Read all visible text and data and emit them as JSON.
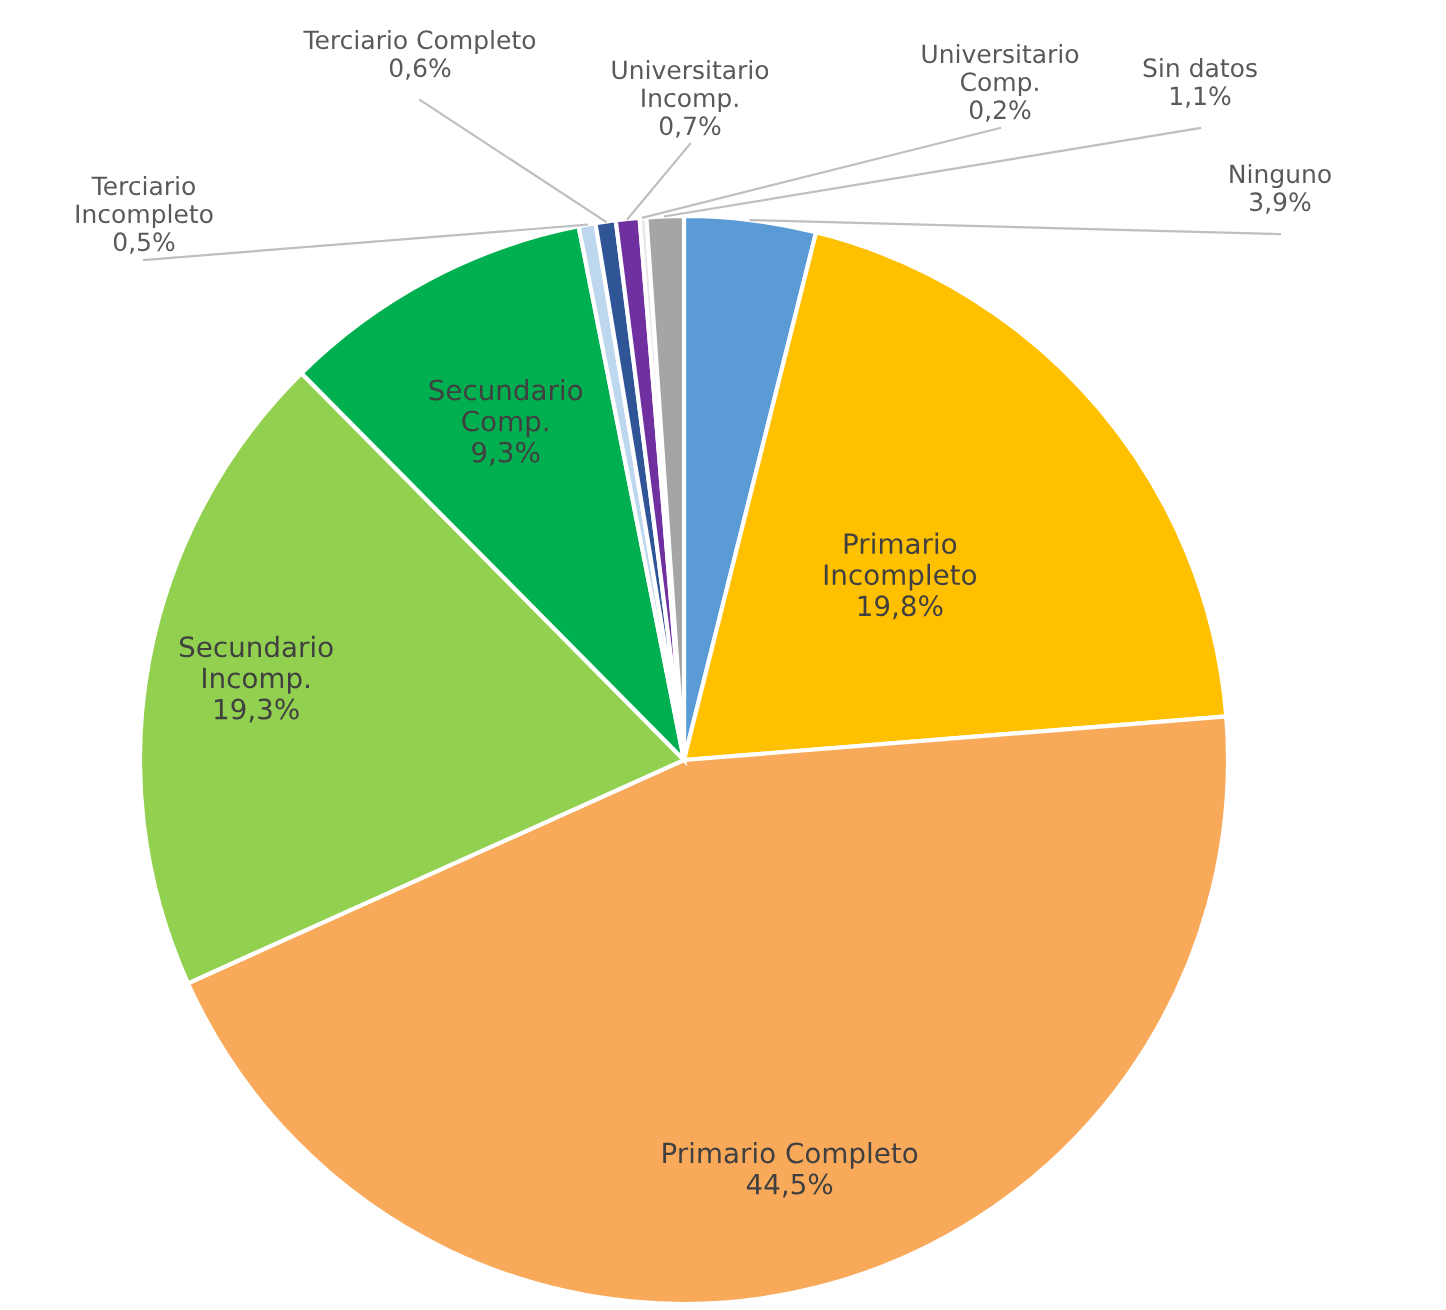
{
  "chart_data": {
    "type": "pie",
    "categories": [
      "Ninguno",
      "Primario\nIncompleto",
      "Primario Completo",
      "Secundario\nIncomp.",
      "Secundario\nComp.",
      "Terciario\nIncompleto",
      "Terciario Completo",
      "Universitario\nIncomp.",
      "Universitario\nComp.",
      "Sin datos"
    ],
    "values": [
      3.9,
      19.8,
      44.5,
      19.3,
      9.3,
      0.5,
      0.6,
      0.7,
      0.2,
      1.1
    ],
    "value_labels": [
      "3,9%",
      "19,8%",
      "44,5%",
      "19,3%",
      "9,3%",
      "0,5%",
      "0,6%",
      "0,7%",
      "0,2%",
      "1,1%"
    ],
    "colors": [
      "#5b9bd5",
      "#ffc000",
      "#f8a95a",
      "#92d050",
      "#00b050",
      "#bdd7ee",
      "#2f5597",
      "#7030a0",
      "#e7e6e6",
      "#a5a5a5"
    ]
  }
}
